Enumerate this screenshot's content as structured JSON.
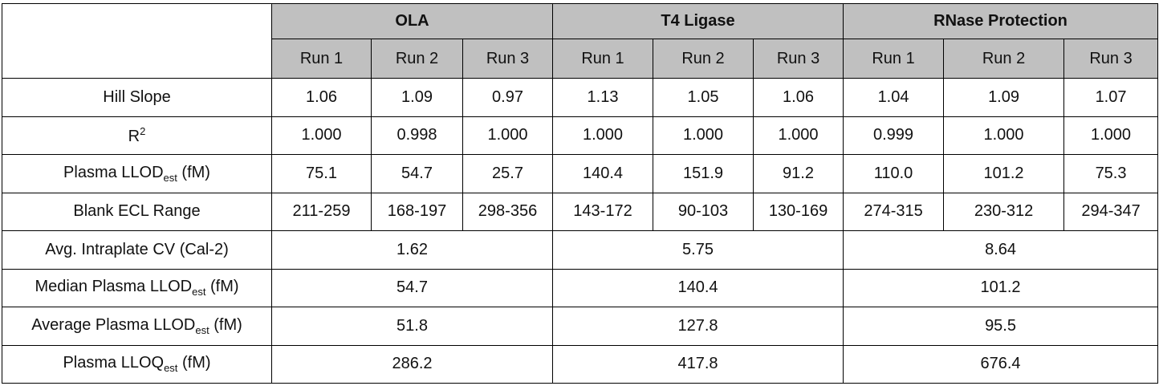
{
  "table": {
    "groups": [
      {
        "name": "OLA",
        "runs": [
          "Run 1",
          "Run 2",
          "Run 3"
        ]
      },
      {
        "name": "T4 Ligase",
        "runs": [
          "Run 1",
          "Run 2",
          "Run 3"
        ]
      },
      {
        "name": "RNase Protection",
        "runs": [
          "Run 1",
          "Run 2",
          "Run 3"
        ]
      }
    ],
    "rows": [
      {
        "label": {
          "text": "Hill Slope"
        },
        "values": [
          "1.06",
          "1.09",
          "0.97",
          "1.13",
          "1.05",
          "1.06",
          "1.04",
          "1.09",
          "1.07"
        ]
      },
      {
        "label": {
          "text": "R",
          "sup": "2"
        },
        "values": [
          "1.000",
          "0.998",
          "1.000",
          "1.000",
          "1.000",
          "1.000",
          "0.999",
          "1.000",
          "1.000"
        ]
      },
      {
        "label": {
          "text": "Plasma LLOD",
          "sub": "est",
          "after": " (fM)"
        },
        "values": [
          "75.1",
          "54.7",
          "25.7",
          "140.4",
          "151.9",
          "91.2",
          "110.0",
          "101.2",
          "75.3"
        ]
      },
      {
        "label": {
          "text": "Blank ECL Range"
        },
        "values": [
          "211-259",
          "168-197",
          "298-356",
          "143-172",
          "90-103",
          "130-169",
          "274-315",
          "230-312",
          "294-347"
        ]
      },
      {
        "label": {
          "text": "Avg. Intraplate CV (Cal-2)"
        },
        "values": [
          "1.62",
          "5.75",
          "8.64"
        ]
      },
      {
        "label": {
          "text": "Median Plasma LLOD",
          "sub": "est",
          "after": " (fM)"
        },
        "values": [
          "54.7",
          "140.4",
          "101.2"
        ]
      },
      {
        "label": {
          "text": "Average Plasma LLOD",
          "sub": "est",
          "after": " (fM)"
        },
        "values": [
          "51.8",
          "127.8",
          "95.5"
        ]
      },
      {
        "label": {
          "text": "Plasma LLOQ",
          "sub": "est",
          "after": " (fM)"
        },
        "values": [
          "286.2",
          "417.8",
          "676.4"
        ]
      }
    ]
  }
}
